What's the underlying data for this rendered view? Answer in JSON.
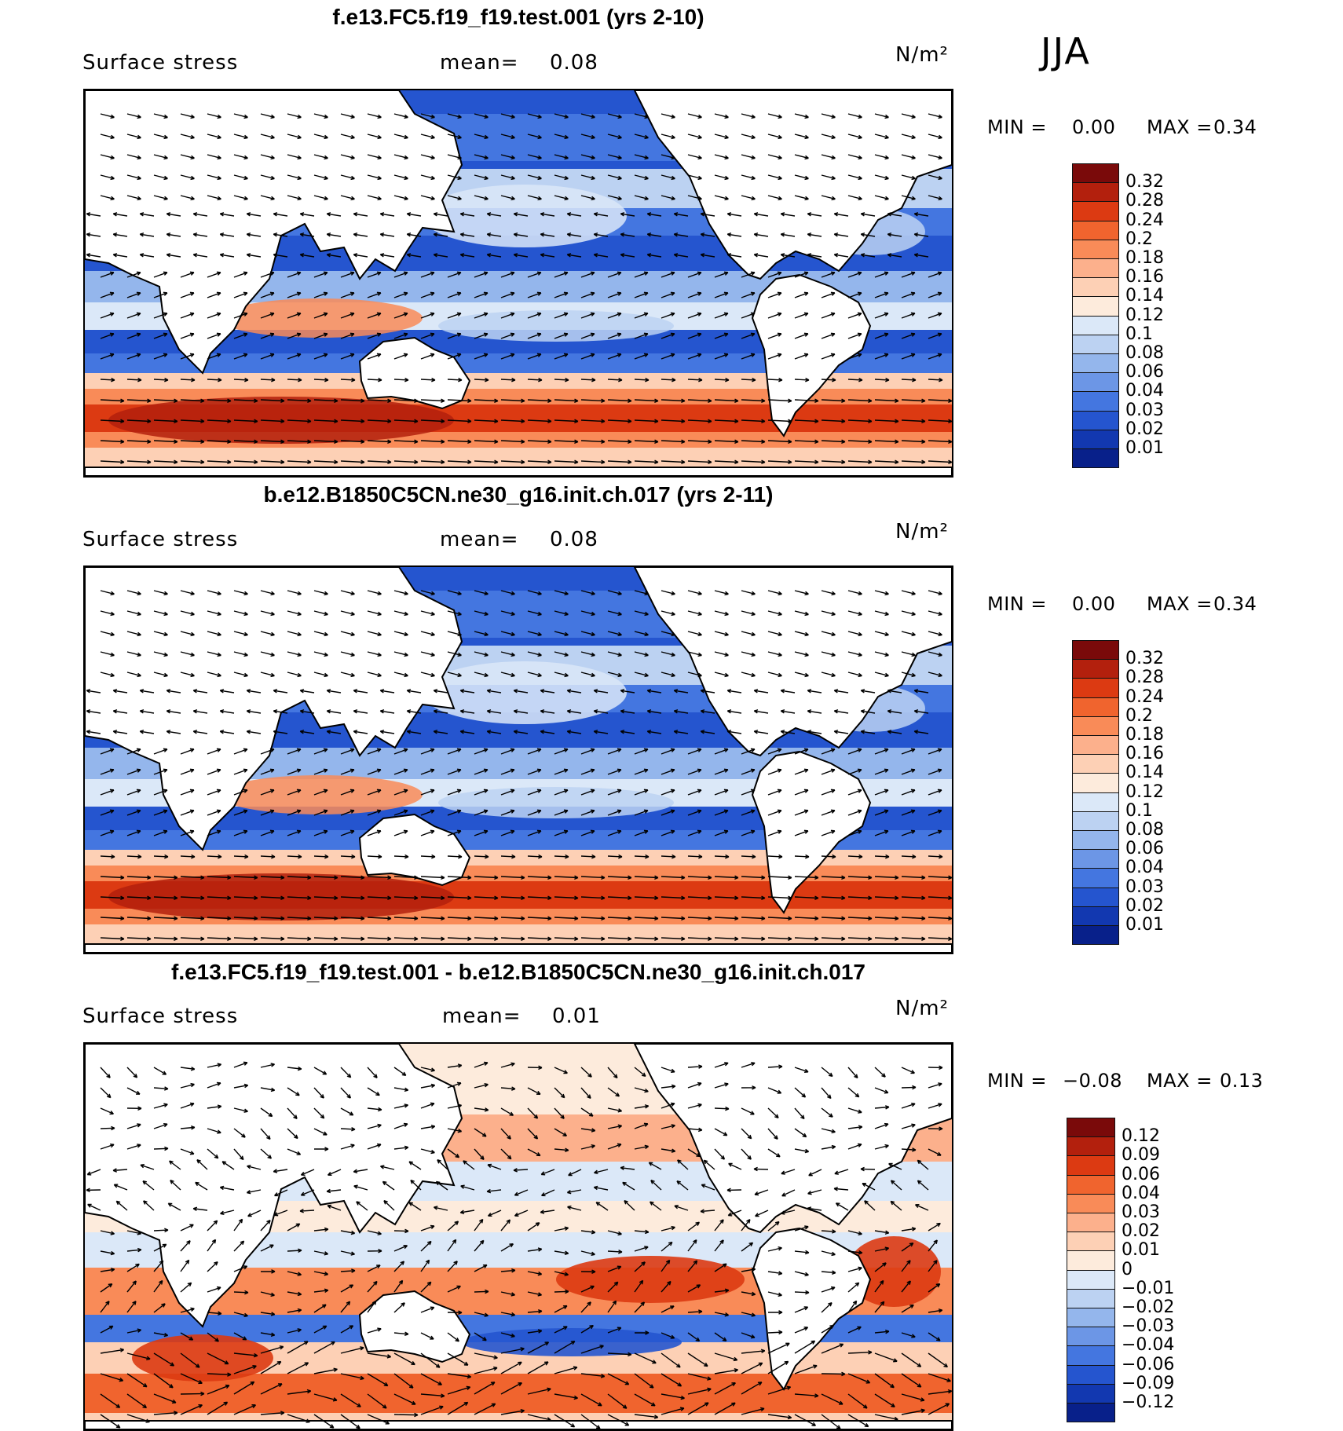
{
  "season": "JJA",
  "panels": [
    {
      "title": "f.e13.FC5.f19_f19.test.001 (yrs 2-10)",
      "variable": "Surface stress",
      "mean_label": "mean=",
      "mean_value": "0.08",
      "units": "N/m²",
      "min_label": "MIN =",
      "min_value": "0.00",
      "max_label": "MAX =",
      "max_value": "0.34",
      "kind": "abs"
    },
    {
      "title": "b.e12.B1850C5CN.ne30_g16.init.ch.017 (yrs 2-11)",
      "variable": "Surface stress",
      "mean_label": "mean=",
      "mean_value": "0.08",
      "units": "N/m²",
      "min_label": "MIN =",
      "min_value": "0.00",
      "max_label": "MAX =",
      "max_value": "0.34",
      "kind": "abs"
    },
    {
      "title": "f.e13.FC5.f19_f19.test.001 - b.e12.B1850C5CN.ne30_g16.init.ch.017",
      "variable": "Surface stress",
      "mean_label": "mean=",
      "mean_value": "0.01",
      "units": "N/m²",
      "min_label": "MIN =",
      "min_value": "−0.08",
      "max_label": "MAX =",
      "max_value": "0.13",
      "kind": "diff"
    }
  ],
  "colorbar_abs": {
    "labels": [
      "0.32",
      "0.28",
      "0.24",
      "0.2",
      "0.18",
      "0.16",
      "0.14",
      "0.12",
      "0.1",
      "0.08",
      "0.06",
      "0.04",
      "0.03",
      "0.02",
      "0.01"
    ],
    "colors": [
      "#7a0a0a",
      "#b3200d",
      "#dc3a12",
      "#f0642e",
      "#f98b58",
      "#fcb08c",
      "#fdd0b5",
      "#fdebdc",
      "#dbe8f8",
      "#bcd2f2",
      "#94b6ec",
      "#6c96e6",
      "#4476e0",
      "#2555cf",
      "#1238b0",
      "#08208a"
    ]
  },
  "colorbar_diff": {
    "labels": [
      "0.12",
      "0.09",
      "0.06",
      "0.04",
      "0.03",
      "0.02",
      "0.01",
      "0",
      "−0.01",
      "−0.02",
      "−0.03",
      "−0.04",
      "−0.06",
      "−0.09",
      "−0.12"
    ],
    "colors": [
      "#7a0a0a",
      "#b3200d",
      "#dc3a12",
      "#f0642e",
      "#f98b58",
      "#fcb08c",
      "#fdd0b5",
      "#fdebdc",
      "#dbe8f8",
      "#bcd2f2",
      "#94b6ec",
      "#6c96e6",
      "#4476e0",
      "#2555cf",
      "#1238b0",
      "#08208a"
    ]
  }
}
